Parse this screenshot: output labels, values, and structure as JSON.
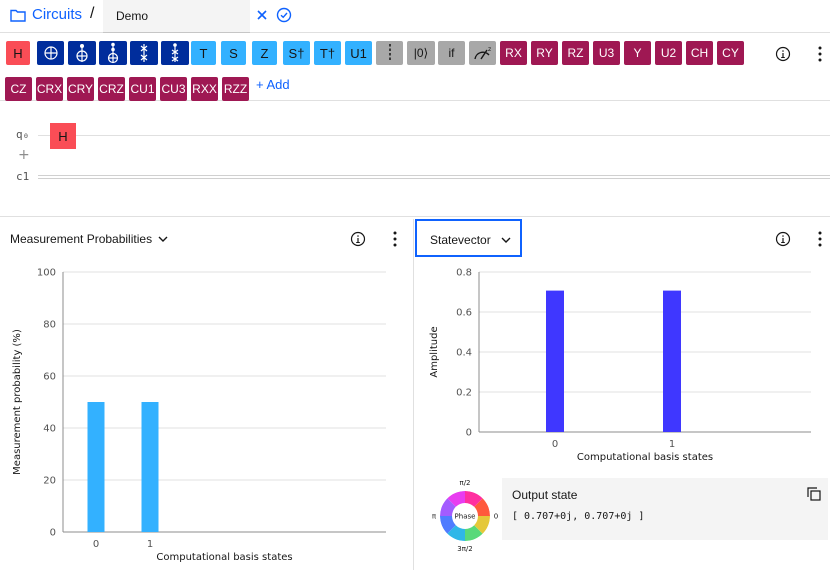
{
  "header": {
    "breadcrumb": "Circuits",
    "separator": "/",
    "circuit_name": "Demo"
  },
  "palette": {
    "row1": [
      {
        "label": "H",
        "kind": "red"
      },
      {
        "label": "",
        "kind": "navy",
        "icon": "not-gate-icon"
      },
      {
        "label": "",
        "kind": "navy",
        "icon": "cnot-gate-icon"
      },
      {
        "label": "",
        "kind": "navy",
        "icon": "toffoli-gate-icon"
      },
      {
        "label": "",
        "kind": "navy",
        "icon": "swap-gate-icon"
      },
      {
        "label": "",
        "kind": "navy",
        "icon": "fredkin-gate-icon"
      },
      {
        "label": "T",
        "kind": "cyan"
      },
      {
        "label": "S",
        "kind": "cyan"
      },
      {
        "label": "Z",
        "kind": "cyan"
      },
      {
        "label": "S†",
        "kind": "cyan"
      },
      {
        "label": "T†",
        "kind": "cyan"
      },
      {
        "label": "U1",
        "kind": "cyan"
      },
      {
        "label": "",
        "kind": "gray",
        "icon": "barrier-icon"
      },
      {
        "label": "|0⟩",
        "kind": "gray"
      },
      {
        "label": "if",
        "kind": "gray"
      },
      {
        "label": "",
        "kind": "gray",
        "icon": "measure-icon"
      },
      {
        "label": "RX",
        "kind": "mag"
      },
      {
        "label": "RY",
        "kind": "mag"
      },
      {
        "label": "RZ",
        "kind": "mag"
      },
      {
        "label": "U3",
        "kind": "mag"
      },
      {
        "label": "Y",
        "kind": "mag"
      },
      {
        "label": "U2",
        "kind": "mag"
      },
      {
        "label": "CH",
        "kind": "mag"
      },
      {
        "label": "CY",
        "kind": "mag"
      }
    ],
    "row2": [
      {
        "label": "CZ",
        "kind": "mag"
      },
      {
        "label": "CRX",
        "kind": "mag"
      },
      {
        "label": "CRY",
        "kind": "mag"
      },
      {
        "label": "CRZ",
        "kind": "mag"
      },
      {
        "label": "CU1",
        "kind": "mag"
      },
      {
        "label": "CU3",
        "kind": "mag"
      },
      {
        "label": "RXX",
        "kind": "mag"
      },
      {
        "label": "RZZ",
        "kind": "mag"
      }
    ],
    "add_label": "+ Add",
    "colors": {
      "red": "#fa4d56",
      "navy": "#002d9c",
      "cyan": "#33b1ff",
      "gray": "#a8a8a8",
      "mag": "#9f1853"
    }
  },
  "circuit": {
    "qubit_label": "q₀",
    "classical_label": "c1",
    "add_wire": "+",
    "placed_gate": "H"
  },
  "probabilities_panel": {
    "title": "Measurement Probabilities",
    "chart_data": {
      "type": "bar",
      "categories": [
        "0",
        "1"
      ],
      "values": [
        50,
        50
      ],
      "ylabel": "Measurement probability (%)",
      "xlabel": "Computational basis states",
      "ylim": [
        0,
        100
      ],
      "yticks": [
        "0",
        "20",
        "40",
        "60",
        "80",
        "100"
      ],
      "grid": true,
      "color": "#33b1ff"
    }
  },
  "statevector_panel": {
    "title": "Statevector",
    "chart_data": {
      "type": "bar",
      "categories": [
        "0",
        "1"
      ],
      "values": [
        0.707,
        0.707
      ],
      "ylabel": "Amplitude",
      "xlabel": "Computational basis states",
      "ylim": [
        0,
        0.8
      ],
      "yticks": [
        "0",
        "0.2",
        "0.4",
        "0.6",
        "0.8"
      ],
      "grid": true,
      "color": "#3f37ff"
    },
    "phase": {
      "label": "Phase",
      "top": "π/2",
      "left": "π",
      "right": "0",
      "bottom": "3π/2"
    },
    "output": {
      "title": "Output state",
      "value": "[ 0.707+0j, 0.707+0j ]"
    }
  }
}
